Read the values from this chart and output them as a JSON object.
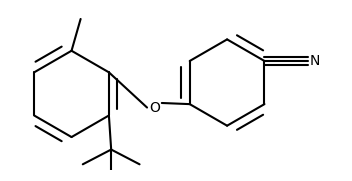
{
  "background_color": "#ffffff",
  "line_color": "#000000",
  "line_width": 1.5,
  "figsize": [
    3.52,
    1.81
  ],
  "dpi": 100,
  "N_label": "N",
  "O_label": "O",
  "font_size_atoms": 10
}
